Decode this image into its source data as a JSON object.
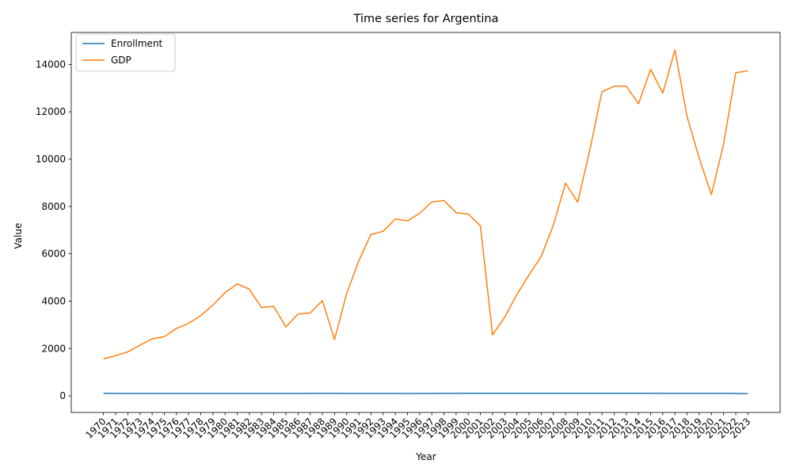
{
  "chart_data": {
    "type": "line",
    "title": "Time series for Argentina",
    "xlabel": "Year",
    "ylabel": "Value",
    "x": [
      "1970",
      "1971",
      "1972",
      "1973",
      "1974",
      "1975",
      "1976",
      "1977",
      "1978",
      "1979",
      "1980",
      "1981",
      "1982",
      "1983",
      "1984",
      "1985",
      "1986",
      "1987",
      "1988",
      "1989",
      "1990",
      "1991",
      "1992",
      "1993",
      "1994",
      "1995",
      "1996",
      "1997",
      "1998",
      "1999",
      "2000",
      "2001",
      "2002",
      "2003",
      "2004",
      "2005",
      "2006",
      "2007",
      "2008",
      "2009",
      "2010",
      "2011",
      "2012",
      "2013",
      "2014",
      "2015",
      "2016",
      "2017",
      "2018",
      "2019",
      "2020",
      "2021",
      "2022",
      "2023"
    ],
    "ylim": [
      -700,
      15350
    ],
    "yticks": [
      0,
      2000,
      4000,
      6000,
      8000,
      10000,
      12000,
      14000
    ],
    "grid": false,
    "legend_position": "top-left",
    "series": [
      {
        "name": "Enrollment",
        "color": "#1f77b4",
        "values": [
          105,
          104,
          104,
          103,
          103,
          102,
          102,
          102,
          102,
          101,
          101,
          101,
          102,
          102,
          102,
          103,
          104,
          105,
          105,
          106,
          104,
          104,
          103,
          102,
          103,
          100,
          103,
          104,
          106,
          108,
          109,
          110,
          110,
          110,
          110,
          110,
          111,
          111,
          112,
          112,
          112,
          111,
          110,
          110,
          109,
          109,
          108,
          108,
          107,
          107,
          106,
          106,
          103,
          88
        ]
      },
      {
        "name": "GDP",
        "color": "#ff7f0e",
        "values": [
          1560,
          1700,
          1860,
          2140,
          2410,
          2500,
          2850,
          3060,
          3390,
          3840,
          4360,
          4730,
          4500,
          3730,
          3780,
          2910,
          3460,
          3500,
          4020,
          2380,
          4320,
          5710,
          6820,
          6950,
          7470,
          7390,
          7710,
          8190,
          8250,
          7740,
          7680,
          7180,
          2580,
          3330,
          4280,
          5110,
          5890,
          7210,
          8980,
          8180,
          10390,
          12850,
          13080,
          13080,
          12340,
          13790,
          12790,
          14610,
          11790,
          10040,
          8500,
          10640,
          13650,
          13730
        ]
      }
    ]
  }
}
